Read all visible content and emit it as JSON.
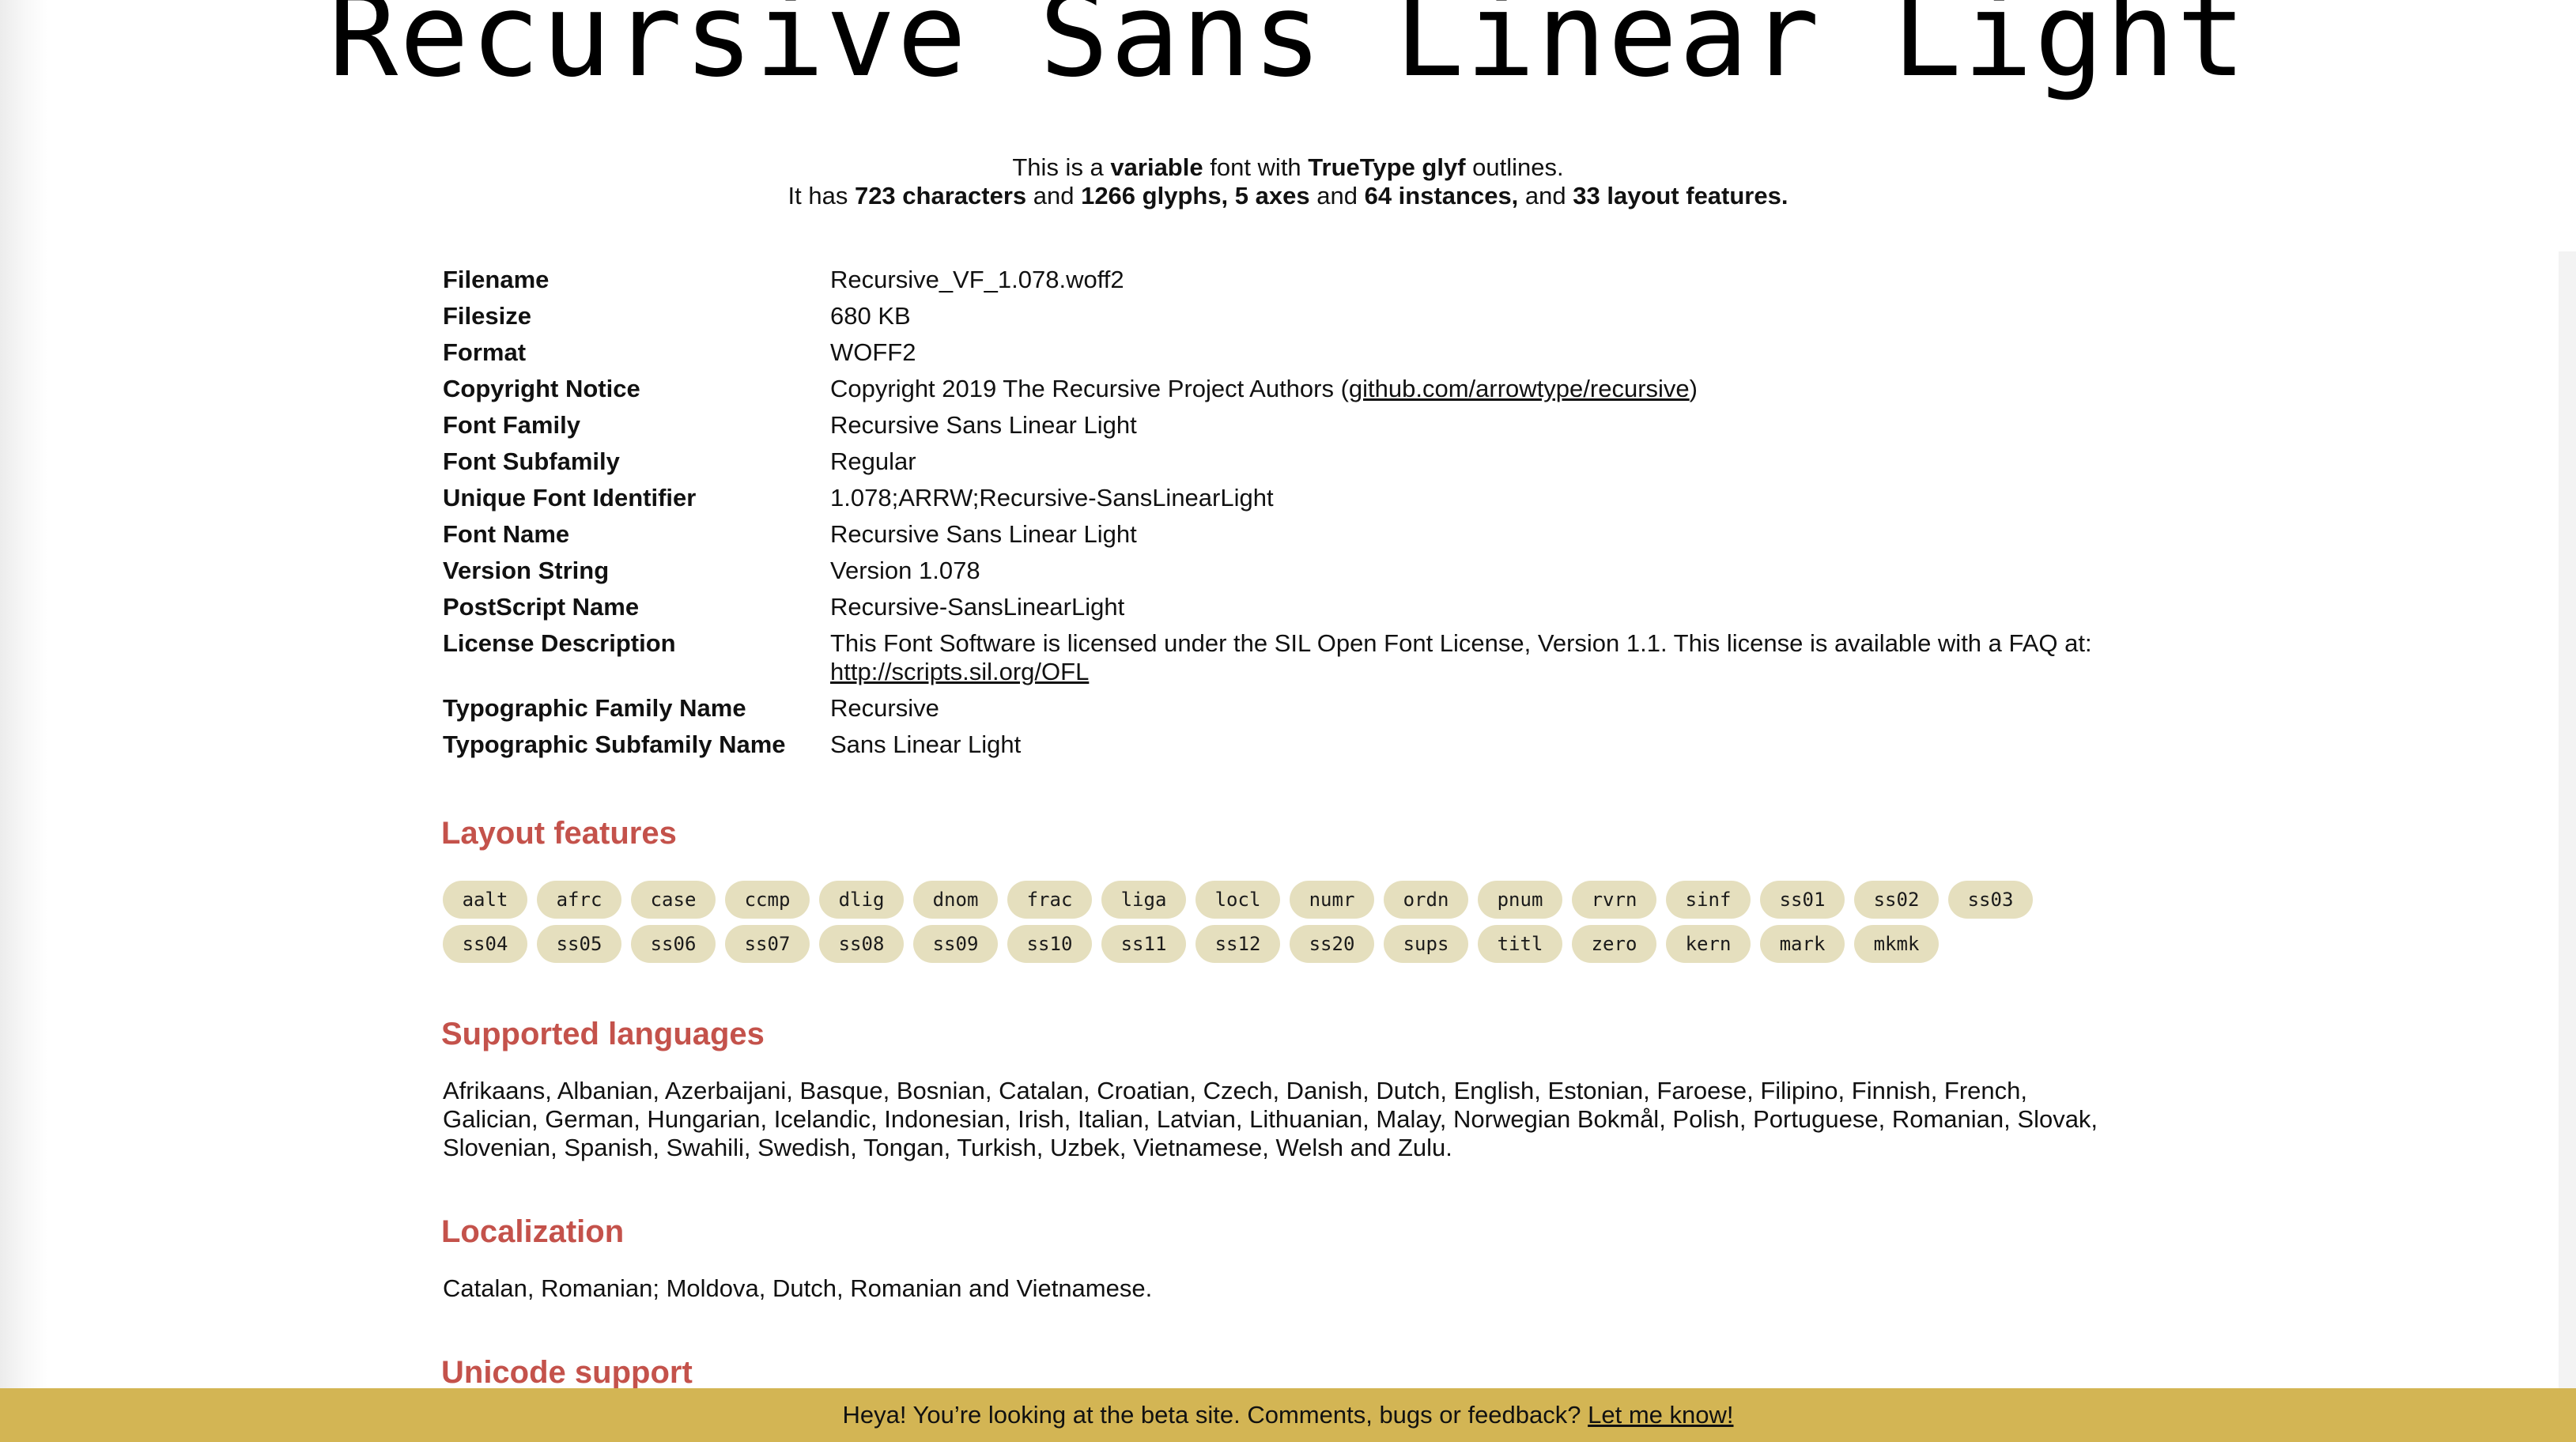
{
  "title": "Recursive Sans Linear Light",
  "summary": {
    "l1_a": "This is a ",
    "l1_b": "variable",
    "l1_c": " font with ",
    "l1_d": "TrueType glyf",
    "l1_e": " outlines.",
    "l2_a": "It has ",
    "l2_b": "723 characters",
    "l2_c": " and ",
    "l2_d": "1266 glyphs,",
    "l2_e": " ",
    "l2_f": "5 axes",
    "l2_g": " and ",
    "l2_h": "64 instances,",
    "l2_i": " and ",
    "l2_j": "33 layout features."
  },
  "meta": [
    {
      "k": "Filename",
      "v": "Recursive_VF_1.078.woff2"
    },
    {
      "k": "Filesize",
      "v": "680 KB"
    },
    {
      "k": "Format",
      "v": "WOFF2"
    },
    {
      "k": "Copyright Notice",
      "v": "Copyright 2019 The Recursive Project Authors (",
      "link": "github.com/arrowtype/recursive",
      "after": ")"
    },
    {
      "k": "Font Family",
      "v": "Recursive Sans Linear Light"
    },
    {
      "k": "Font Subfamily",
      "v": "Regular"
    },
    {
      "k": "Unique Font Identifier",
      "v": "1.078;ARRW;Recursive-SansLinearLight"
    },
    {
      "k": "Font Name",
      "v": "Recursive Sans Linear Light"
    },
    {
      "k": "Version String",
      "v": "Version 1.078"
    },
    {
      "k": "PostScript Name",
      "v": "Recursive-SansLinearLight"
    },
    {
      "k": "License Description",
      "v": "This Font Software is licensed under the SIL Open Font License, Version 1.1. This license is available with a FAQ at: ",
      "link": "http://scripts.sil.org/OFL",
      "after": ""
    },
    {
      "k": "Typographic Family Name",
      "v": "Recursive"
    },
    {
      "k": "Typographic Subfamily Name",
      "v": "Sans Linear Light"
    }
  ],
  "layout_heading": "Layout features",
  "features": [
    "aalt",
    "afrc",
    "case",
    "ccmp",
    "dlig",
    "dnom",
    "frac",
    "liga",
    "locl",
    "numr",
    "ordn",
    "pnum",
    "rvrn",
    "sinf",
    "ss01",
    "ss02",
    "ss03",
    "ss04",
    "ss05",
    "ss06",
    "ss07",
    "ss08",
    "ss09",
    "ss10",
    "ss11",
    "ss12",
    "ss20",
    "sups",
    "titl",
    "zero",
    "kern",
    "mark",
    "mkmk"
  ],
  "languages_heading": "Supported languages",
  "languages_text": "Afrikaans, Albanian, Azerbaijani, Basque, Bosnian, Catalan, Croatian, Czech, Danish, Dutch, English, Estonian, Faroese, Filipino, Finnish, French, Galician, German, Hungarian, Icelandic, Indonesian, Irish, Italian, Latvian, Lithuanian, Malay, Norwegian Bokmål, Polish, Portuguese, Romanian, Slovak, Slovenian, Spanish, Swahili, Swedish, Tongan, Turkish, Uzbek, Vietnamese, Welsh and Zulu.",
  "localization_heading": "Localization",
  "localization_text": "Catalan, Romanian; Moldova, Dutch, Romanian and Vietnamese.",
  "unicode_heading": "Unicode support",
  "banner": {
    "text": "Heya! You’re looking at the beta site. Comments, bugs or feedback? ",
    "link": "Let me know!"
  },
  "colors": {
    "accent": "#c4524b",
    "pill": "#e5dfbe",
    "banner": "#d3b554"
  }
}
